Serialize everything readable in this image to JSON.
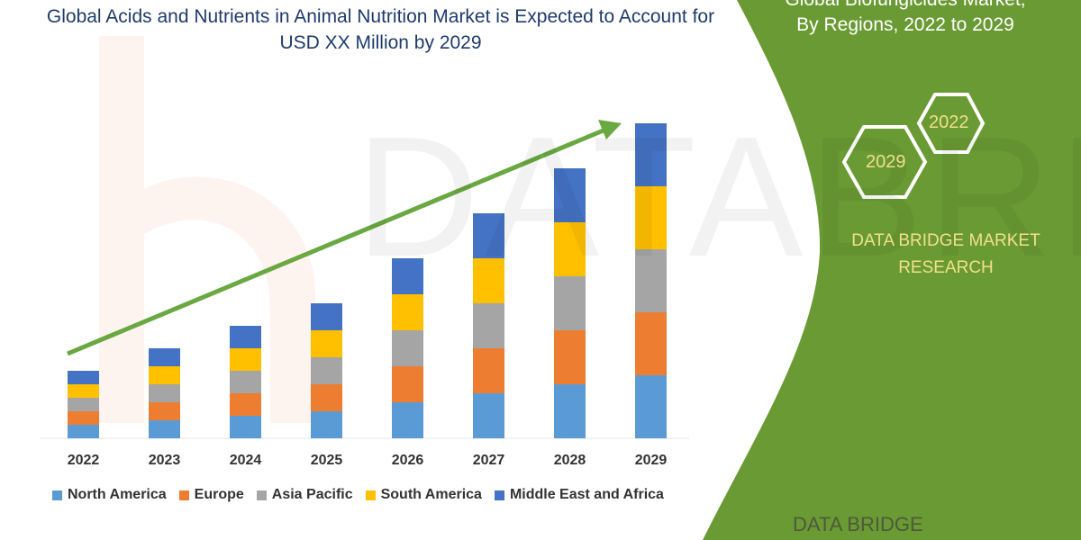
{
  "chart_data": {
    "type": "bar",
    "stacked": true,
    "title": "Global Acids and Nutrients in Animal Nutrition Market is Expected to Account for USD XX Million by 2029",
    "xlabel": "",
    "ylabel": "",
    "y_axis_visible": false,
    "grid": false,
    "legend_position": "bottom",
    "categories": [
      "2022",
      "2023",
      "2024",
      "2025",
      "2026",
      "2027",
      "2028",
      "2029"
    ],
    "series": [
      {
        "name": "North America",
        "color": "#5b9bd5",
        "values": [
          15,
          20,
          25,
          30,
          40,
          50,
          60,
          70
        ]
      },
      {
        "name": "Europe",
        "color": "#ed7d31",
        "values": [
          15,
          20,
          25,
          30,
          40,
          50,
          60,
          70
        ]
      },
      {
        "name": "Asia Pacific",
        "color": "#a5a5a5",
        "values": [
          15,
          20,
          25,
          30,
          40,
          50,
          60,
          70
        ]
      },
      {
        "name": "South America",
        "color": "#ffc000",
        "values": [
          15,
          20,
          25,
          30,
          40,
          50,
          60,
          70
        ]
      },
      {
        "name": "Middle East and Africa",
        "color": "#4472c4",
        "values": [
          15,
          20,
          25,
          30,
          40,
          50,
          60,
          70
        ]
      }
    ],
    "annotation": "upward trend arrow"
  },
  "side_panel": {
    "title_line1": "Global Biofungicides Market,",
    "title_line2": "By Regions, 2022 to 2029",
    "hex_a": "2022",
    "hex_b": "2029",
    "brand_line1": "DATA BRIDGE MARKET",
    "brand_line2": "RESEARCH",
    "panel_color": "#6a9a34",
    "footer_logo": "DATA BRIDGE"
  },
  "watermark": "DATA BRIDGE"
}
